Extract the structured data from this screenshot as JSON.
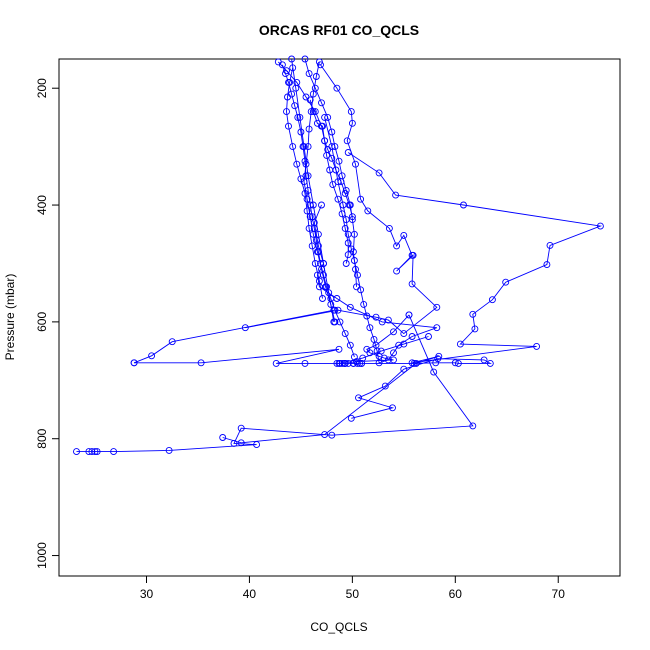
{
  "chart_data": {
    "type": "line",
    "title": "ORCAS RF01 CO_QCLS",
    "xlabel": "CO_QCLS",
    "ylabel": "Pressure (mbar)",
    "xlim": [
      21.5,
      76
    ],
    "ylim": [
      1035,
      150
    ],
    "y_reversed": true,
    "grid": false,
    "xticks": [
      30,
      40,
      50,
      60,
      70
    ],
    "yticks": [
      200,
      400,
      600,
      800,
      1000
    ],
    "series_color": "#0000ff",
    "series": [
      {
        "x": [
          23.2,
          24.4,
          24.7,
          25.0,
          25.2,
          26.8,
          32.2,
          40.7,
          38.5,
          39.2,
          48.0,
          61.7,
          57.9,
          55.5
        ],
        "y": [
          822,
          822,
          822,
          822,
          822,
          822,
          820,
          810,
          808,
          782,
          794,
          778,
          686,
          588
        ]
      },
      {
        "x": [
          55.5,
          54.0,
          52.3,
          51.4,
          51.7,
          52.6,
          53.1,
          54.0,
          50.4,
          49.3,
          50.1,
          50.7,
          49.2,
          48.5,
          48.8,
          49.0,
          49.3,
          49.6,
          50.1,
          50.5,
          50.9
        ],
        "y": [
          588,
          617,
          640,
          647,
          653,
          659,
          662,
          665,
          668,
          671,
          671,
          671,
          671,
          671,
          671,
          671,
          671,
          671,
          671,
          671,
          671
        ]
      },
      {
        "x": [
          50.9,
          56.0,
          58.1,
          60.0,
          60.3,
          63.4,
          62.8,
          58.3,
          55.0,
          53.2,
          50.6,
          53.9,
          49.9
        ],
        "y": [
          671,
          671,
          670,
          670,
          671,
          671,
          665,
          663,
          681,
          710,
          730,
          747,
          765
        ]
      },
      {
        "x": [
          28.8,
          35.3,
          48.7,
          42.6,
          45.4,
          48.7,
          51.0,
          52.8,
          55.0,
          57.4
        ],
        "y": [
          670,
          670,
          647,
          671,
          671,
          671,
          662,
          650,
          638,
          625
        ]
      },
      {
        "x": [
          28.8,
          30.5,
          32.5,
          48.2
        ],
        "y": [
          670,
          658,
          634,
          580
        ]
      },
      {
        "x": [
          37.4,
          39.2,
          47.3,
          56.2,
          58.4,
          55.8,
          67.9,
          60.5,
          61.9,
          61.7,
          63.6,
          64.9,
          68.9,
          69.2,
          74.1,
          60.8,
          54.2,
          52.6,
          49.6
        ],
        "y": [
          798,
          807,
          793,
          671,
          659,
          670,
          642,
          638,
          612,
          587,
          562,
          532,
          502,
          469,
          436,
          400,
          383,
          345,
          310
        ]
      },
      {
        "x": [
          39.6,
          48.6,
          52.3,
          53.5,
          55.0,
          58.2,
          55.8,
          55.9,
          54.3,
          55.8,
          55.0,
          54.3,
          53.6,
          51.5,
          50.8,
          50.3,
          49.5,
          50.0,
          49.9,
          48.5,
          46.9
        ],
        "y": [
          610,
          580,
          592,
          597,
          620,
          575,
          535,
          486,
          513,
          486,
          452,
          470,
          440,
          410,
          390,
          330,
          290,
          260,
          240,
          200,
          160
        ]
      },
      {
        "x": [
          47.3,
          48.0,
          48.6,
          49.1,
          49.4,
          49.6,
          49.9,
          50.2,
          50.5,
          50.8,
          51.1,
          51.4,
          51.7,
          52.1,
          52.4,
          52.6,
          53.5,
          54.0,
          54.5,
          55.8,
          58.2,
          52.9,
          49.8,
          48.5,
          46.8,
          46.6,
          47.2,
          46.7,
          46.3,
          47.0
        ],
        "y": [
          250,
          300,
          360,
          400,
          425,
          450,
          475,
          495,
          520,
          545,
          570,
          590,
          610,
          630,
          650,
          670,
          665,
          653,
          640,
          625,
          610,
          600,
          575,
          560,
          540,
          520,
          500,
          470,
          430,
          400
        ]
      },
      {
        "x": [
          43.2,
          43.5,
          43.8,
          44.1,
          44.4,
          44.7,
          45.0,
          45.2,
          45.4,
          45.5,
          45.7,
          45.9,
          46.1,
          46.3,
          46.5,
          46.7,
          46.9,
          47.2,
          47.5,
          47.9,
          48.3,
          48.8,
          49.3,
          49.8,
          50.2
        ],
        "y": [
          160,
          175,
          190,
          210,
          230,
          250,
          275,
          300,
          325,
          350,
          375,
          400,
          420,
          440,
          460,
          480,
          500,
          520,
          540,
          560,
          580,
          600,
          620,
          640,
          660
        ]
      },
      {
        "x": [
          42.8,
          43.6,
          44.6,
          45.5,
          46.4,
          47.0,
          47.3,
          47.5,
          47.8,
          48.1,
          48.6,
          49.0,
          49.3,
          49.6,
          49.6,
          49.4
        ],
        "y": [
          155,
          170,
          190,
          215,
          240,
          265,
          290,
          315,
          340,
          365,
          390,
          415,
          440,
          465,
          485,
          500
        ]
      },
      {
        "x": [
          45.4,
          45.8,
          46.4,
          47.0,
          47.6,
          48.0,
          48.3,
          48.7,
          49.0,
          49.4,
          49.8,
          50.0,
          50.2,
          50.1,
          50.3,
          50.4
        ],
        "y": [
          150,
          175,
          200,
          225,
          250,
          275,
          300,
          325,
          350,
          375,
          400,
          425,
          450,
          480,
          510,
          540
        ]
      },
      {
        "x": [
          46.8,
          46.5,
          46.2,
          46.0,
          45.8,
          45.7,
          45.5,
          45.3,
          45.6,
          45.9,
          46.2,
          46.6,
          47.0,
          47.4,
          47.9,
          48.3
        ],
        "y": [
          155,
          180,
          210,
          240,
          270,
          300,
          330,
          360,
          390,
          420,
          450,
          480,
          510,
          540,
          570,
          600
        ]
      },
      {
        "x": [
          44.2,
          43.9,
          43.7,
          43.6,
          43.8,
          44.2,
          44.6,
          45.0,
          45.4,
          45.6,
          45.8,
          46.1,
          46.4,
          46.8,
          47.1
        ],
        "y": [
          165,
          190,
          215,
          240,
          265,
          300,
          330,
          355,
          380,
          410,
          440,
          470,
          500,
          530,
          560
        ]
      },
      {
        "x": [
          45.9,
          46.2,
          46.6,
          47.1,
          47.3,
          47.6,
          48.0,
          48.4,
          48.9,
          49.3,
          49.7,
          50.0
        ],
        "y": [
          220,
          240,
          260,
          265,
          290,
          305,
          320,
          340,
          360,
          380,
          400,
          420
        ]
      },
      {
        "x": [
          44.1,
          44.5,
          44.9,
          45.3,
          45.7,
          46.2,
          46.7,
          47.2,
          47.7,
          48.2
        ],
        "y": [
          150,
          200,
          250,
          300,
          350,
          400,
          450,
          500,
          550,
          600
        ]
      }
    ]
  }
}
